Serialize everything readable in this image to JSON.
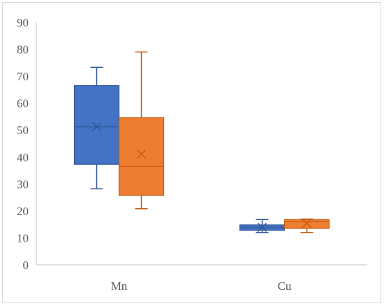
{
  "chart_data": {
    "type": "boxplot",
    "title": "",
    "xlabel": "",
    "ylabel": "",
    "ylim": [
      0,
      90
    ],
    "yticks": [
      0,
      10,
      20,
      30,
      40,
      50,
      60,
      70,
      80,
      90
    ],
    "grid": false,
    "legend": "none",
    "categories": [
      "Mn",
      "Cu"
    ],
    "series": [
      {
        "color": "#4472c4",
        "boxes": [
          {
            "min": 28.2,
            "q1": 37.3,
            "median": 51.2,
            "q3": 66.5,
            "max": 73.3,
            "mean": 51.3
          },
          {
            "min": 12.0,
            "q1": 12.8,
            "median": 13.8,
            "q3": 14.8,
            "max": 16.8,
            "mean": 13.9
          }
        ]
      },
      {
        "color": "#ed7d31",
        "boxes": [
          {
            "min": 20.8,
            "q1": 25.8,
            "median": 36.5,
            "q3": 54.6,
            "max": 79.0,
            "mean": 41.1
          },
          {
            "min": 12.0,
            "q1": 13.5,
            "median": 16.0,
            "q3": 16.8,
            "max": 17.0,
            "mean": 15.4
          }
        ]
      }
    ]
  }
}
